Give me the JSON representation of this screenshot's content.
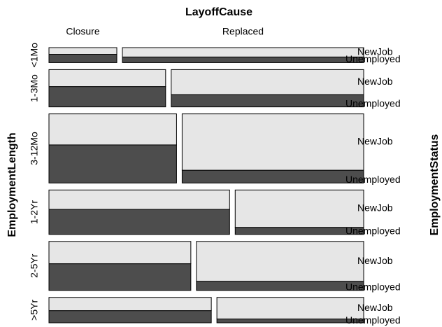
{
  "chart_data": {
    "type": "mosaic",
    "title": "LayoffCause",
    "y_label": "EmploymentLength",
    "z_label": "EmploymentStatus",
    "rows": [
      "<1Mo",
      "1-3Mo",
      "3-12Mo",
      "1-2Yr",
      "2-5Yr",
      ">5Yr"
    ],
    "columns": [
      "Closure",
      "Replaced"
    ],
    "series": [
      {
        "name": "NewJob",
        "color": "#e6e6e6",
        "values": [
          [
            8,
            40
          ],
          [
            35,
            85
          ],
          [
            70,
            181
          ],
          [
            62,
            85
          ],
          [
            56,
            118
          ],
          [
            38,
            56
          ]
        ]
      },
      {
        "name": "Unemployed",
        "color": "#4d4d4d",
        "values": [
          [
            10,
            24
          ],
          [
            42,
            42
          ],
          [
            86,
            41
          ],
          [
            80,
            16
          ],
          [
            67,
            27
          ],
          [
            35,
            10
          ]
        ]
      }
    ]
  }
}
